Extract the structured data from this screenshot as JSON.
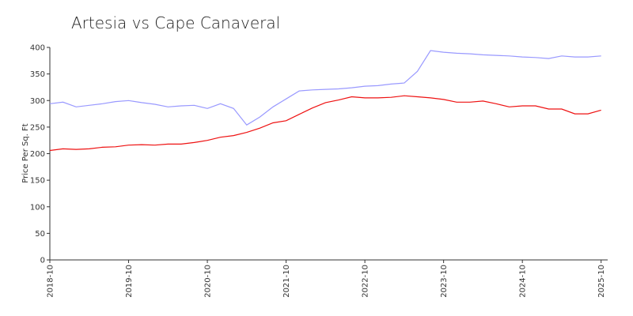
{
  "chart_data": {
    "type": "line",
    "title": "Artesia vs Cape Canaveral",
    "y_label": "Price Per Sq. Ft",
    "x": [
      "2018-10",
      "2018-12",
      "2019-02",
      "2019-04",
      "2019-06",
      "2019-08",
      "2019-10",
      "2019-12",
      "2020-02",
      "2020-04",
      "2020-06",
      "2020-08",
      "2020-10",
      "2020-12",
      "2021-02",
      "2021-04",
      "2021-06",
      "2021-08",
      "2021-10",
      "2021-12",
      "2022-02",
      "2022-04",
      "2022-06",
      "2022-08",
      "2022-10",
      "2022-12",
      "2023-02",
      "2023-04",
      "2023-06",
      "2023-08",
      "2023-10",
      "2023-12",
      "2024-02",
      "2024-04",
      "2024-06",
      "2024-08",
      "2024-10",
      "2024-12",
      "2025-02",
      "2025-04",
      "2025-06",
      "2025-08",
      "2025-10"
    ],
    "series": [
      {
        "color": "#9999ff",
        "values": [
          294,
          297,
          288,
          291,
          294,
          298,
          300,
          296,
          293,
          288,
          290,
          291,
          285,
          294,
          285,
          254,
          269,
          288,
          303,
          318,
          320,
          321,
          322,
          324,
          327,
          328,
          331,
          333,
          355,
          394,
          391,
          389,
          388,
          386,
          385,
          384,
          382,
          381,
          379,
          384,
          382,
          382,
          384
        ]
      },
      {
        "color": "#ee1111",
        "values": [
          206,
          209,
          208,
          209,
          212,
          213,
          216,
          217,
          216,
          218,
          218,
          221,
          225,
          231,
          234,
          240,
          248,
          258,
          262,
          274,
          286,
          296,
          301,
          307,
          305,
          305,
          306,
          309,
          307,
          305,
          302,
          297,
          297,
          299,
          294,
          288,
          290,
          290,
          284,
          284,
          275,
          275,
          282
        ]
      }
    ],
    "xlim": [
      "2018-10",
      "2025-11"
    ],
    "xticks": [
      "2018-10",
      "2019-10",
      "2020-10",
      "2021-10",
      "2022-10",
      "2023-10",
      "2024-10",
      "2025-10"
    ],
    "ylim": [
      0,
      400
    ],
    "yticks": [
      0,
      50,
      100,
      150,
      200,
      250,
      300,
      350,
      400
    ]
  }
}
